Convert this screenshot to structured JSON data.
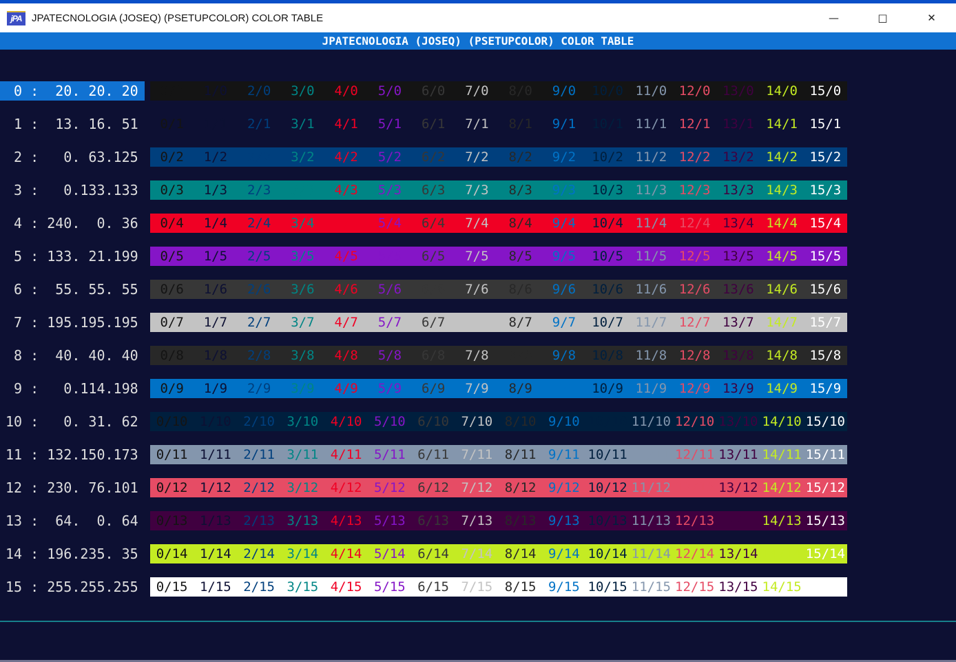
{
  "window": {
    "title": "JPATECNOLOGIA (JOSEQ) (PSETUPCOLOR) COLOR TABLE",
    "icon_text": "jPA",
    "controls": {
      "minimize": "—",
      "maximize": "□",
      "close": "✕"
    }
  },
  "header": {
    "title": "JPATECNOLOGIA (JOSEQ) (PSETUPCOLOR) COLOR TABLE"
  },
  "selected_index": 0,
  "grid": {
    "columns": 16,
    "rows": 16,
    "cell_format": "{fg}/{bg}"
  },
  "palette": [
    {
      "index": 0,
      "rgb": [
        20,
        20,
        20
      ],
      "label": " 0 :  20. 20. 20"
    },
    {
      "index": 1,
      "rgb": [
        13,
        16,
        51
      ],
      "label": " 1 :  13. 16. 51"
    },
    {
      "index": 2,
      "rgb": [
        0,
        63,
        125
      ],
      "label": " 2 :   0. 63.125"
    },
    {
      "index": 3,
      "rgb": [
        0,
        133,
        133
      ],
      "label": " 3 :   0.133.133"
    },
    {
      "index": 4,
      "rgb": [
        240,
        0,
        36
      ],
      "label": " 4 : 240.  0. 36"
    },
    {
      "index": 5,
      "rgb": [
        133,
        21,
        199
      ],
      "label": " 5 : 133. 21.199"
    },
    {
      "index": 6,
      "rgb": [
        55,
        55,
        55
      ],
      "label": " 6 :  55. 55. 55"
    },
    {
      "index": 7,
      "rgb": [
        195,
        195,
        195
      ],
      "label": " 7 : 195.195.195"
    },
    {
      "index": 8,
      "rgb": [
        40,
        40,
        40
      ],
      "label": " 8 :  40. 40. 40"
    },
    {
      "index": 9,
      "rgb": [
        0,
        114,
        198
      ],
      "label": " 9 :   0.114.198"
    },
    {
      "index": 10,
      "rgb": [
        0,
        31,
        62
      ],
      "label": "10 :   0. 31. 62"
    },
    {
      "index": 11,
      "rgb": [
        132,
        150,
        173
      ],
      "label": "11 : 132.150.173"
    },
    {
      "index": 12,
      "rgb": [
        230,
        76,
        101
      ],
      "label": "12 : 230. 76.101"
    },
    {
      "index": 13,
      "rgb": [
        64,
        0,
        64
      ],
      "label": "13 :  64.  0. 64"
    },
    {
      "index": 14,
      "rgb": [
        196,
        235,
        35
      ],
      "label": "14 : 196.235. 35"
    },
    {
      "index": 15,
      "rgb": [
        255,
        255,
        255
      ],
      "label": "15 : 255.255.255"
    }
  ],
  "colors": {
    "accent_blue": "#1172d2",
    "top_border_blue": "#0a4fc8",
    "window_background": "#0d1033",
    "divider_teal": "#17808a",
    "bottom_strip": "#73738f",
    "titlebar_bg": "#ffffff",
    "titlebar_text": "#161616"
  }
}
